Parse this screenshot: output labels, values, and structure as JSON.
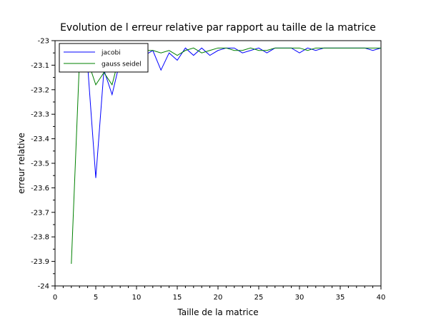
{
  "chart_data": {
    "type": "line",
    "title": "Evolution de l erreur relative par rapport au taille de la matrice",
    "xlabel": "Taille de la matrice",
    "ylabel": "erreur relative",
    "xlim": [
      0,
      40
    ],
    "ylim": [
      -24,
      -23
    ],
    "xticks": [
      0,
      5,
      10,
      15,
      20,
      25,
      30,
      35,
      40
    ],
    "yticks": [
      -24,
      -23.9,
      -23.8,
      -23.7,
      -23.6,
      -23.5,
      -23.4,
      -23.3,
      -23.2,
      -23.1,
      -23
    ],
    "legend_position": "top-left",
    "grid": false,
    "series": [
      {
        "name": "jacobi",
        "color": "#0000ff",
        "x": [
          2,
          3,
          4,
          5,
          6,
          7,
          8,
          9,
          10,
          11,
          12,
          13,
          14,
          15,
          16,
          17,
          18,
          19,
          20,
          21,
          22,
          23,
          24,
          25,
          26,
          27,
          28,
          29,
          30,
          31,
          32,
          33,
          34,
          35,
          36,
          37,
          38,
          39,
          40
        ],
        "values": [
          -23.04,
          -23.03,
          -23.1,
          -23.56,
          -23.12,
          -23.22,
          -23.08,
          -23.05,
          -23.05,
          -23.06,
          -23.04,
          -23.12,
          -23.05,
          -23.08,
          -23.03,
          -23.06,
          -23.03,
          -23.06,
          -23.04,
          -23.03,
          -23.03,
          -23.05,
          -23.04,
          -23.03,
          -23.05,
          -23.03,
          -23.03,
          -23.03,
          -23.05,
          -23.03,
          -23.04,
          -23.03,
          -23.03,
          -23.03,
          -23.03,
          -23.03,
          -23.03,
          -23.04,
          -23.03
        ]
      },
      {
        "name": "gauss seidel",
        "color": "#008000",
        "x": [
          2,
          3,
          4,
          5,
          6,
          7,
          8,
          9,
          10,
          11,
          12,
          13,
          14,
          15,
          16,
          17,
          18,
          19,
          20,
          21,
          22,
          23,
          24,
          25,
          26,
          27,
          28,
          29,
          30,
          31,
          32,
          33,
          34,
          35,
          36,
          37,
          38,
          39,
          40
        ],
        "values": [
          -23.91,
          -23.08,
          -23.08,
          -23.18,
          -23.13,
          -23.18,
          -23.05,
          -23.04,
          -23.05,
          -23.04,
          -23.04,
          -23.05,
          -23.04,
          -23.06,
          -23.04,
          -23.03,
          -23.05,
          -23.04,
          -23.03,
          -23.03,
          -23.04,
          -23.04,
          -23.03,
          -23.04,
          -23.04,
          -23.03,
          -23.03,
          -23.03,
          -23.03,
          -23.04,
          -23.03,
          -23.03,
          -23.03,
          -23.03,
          -23.03,
          -23.03,
          -23.03,
          -23.03,
          -23.03
        ]
      }
    ]
  }
}
